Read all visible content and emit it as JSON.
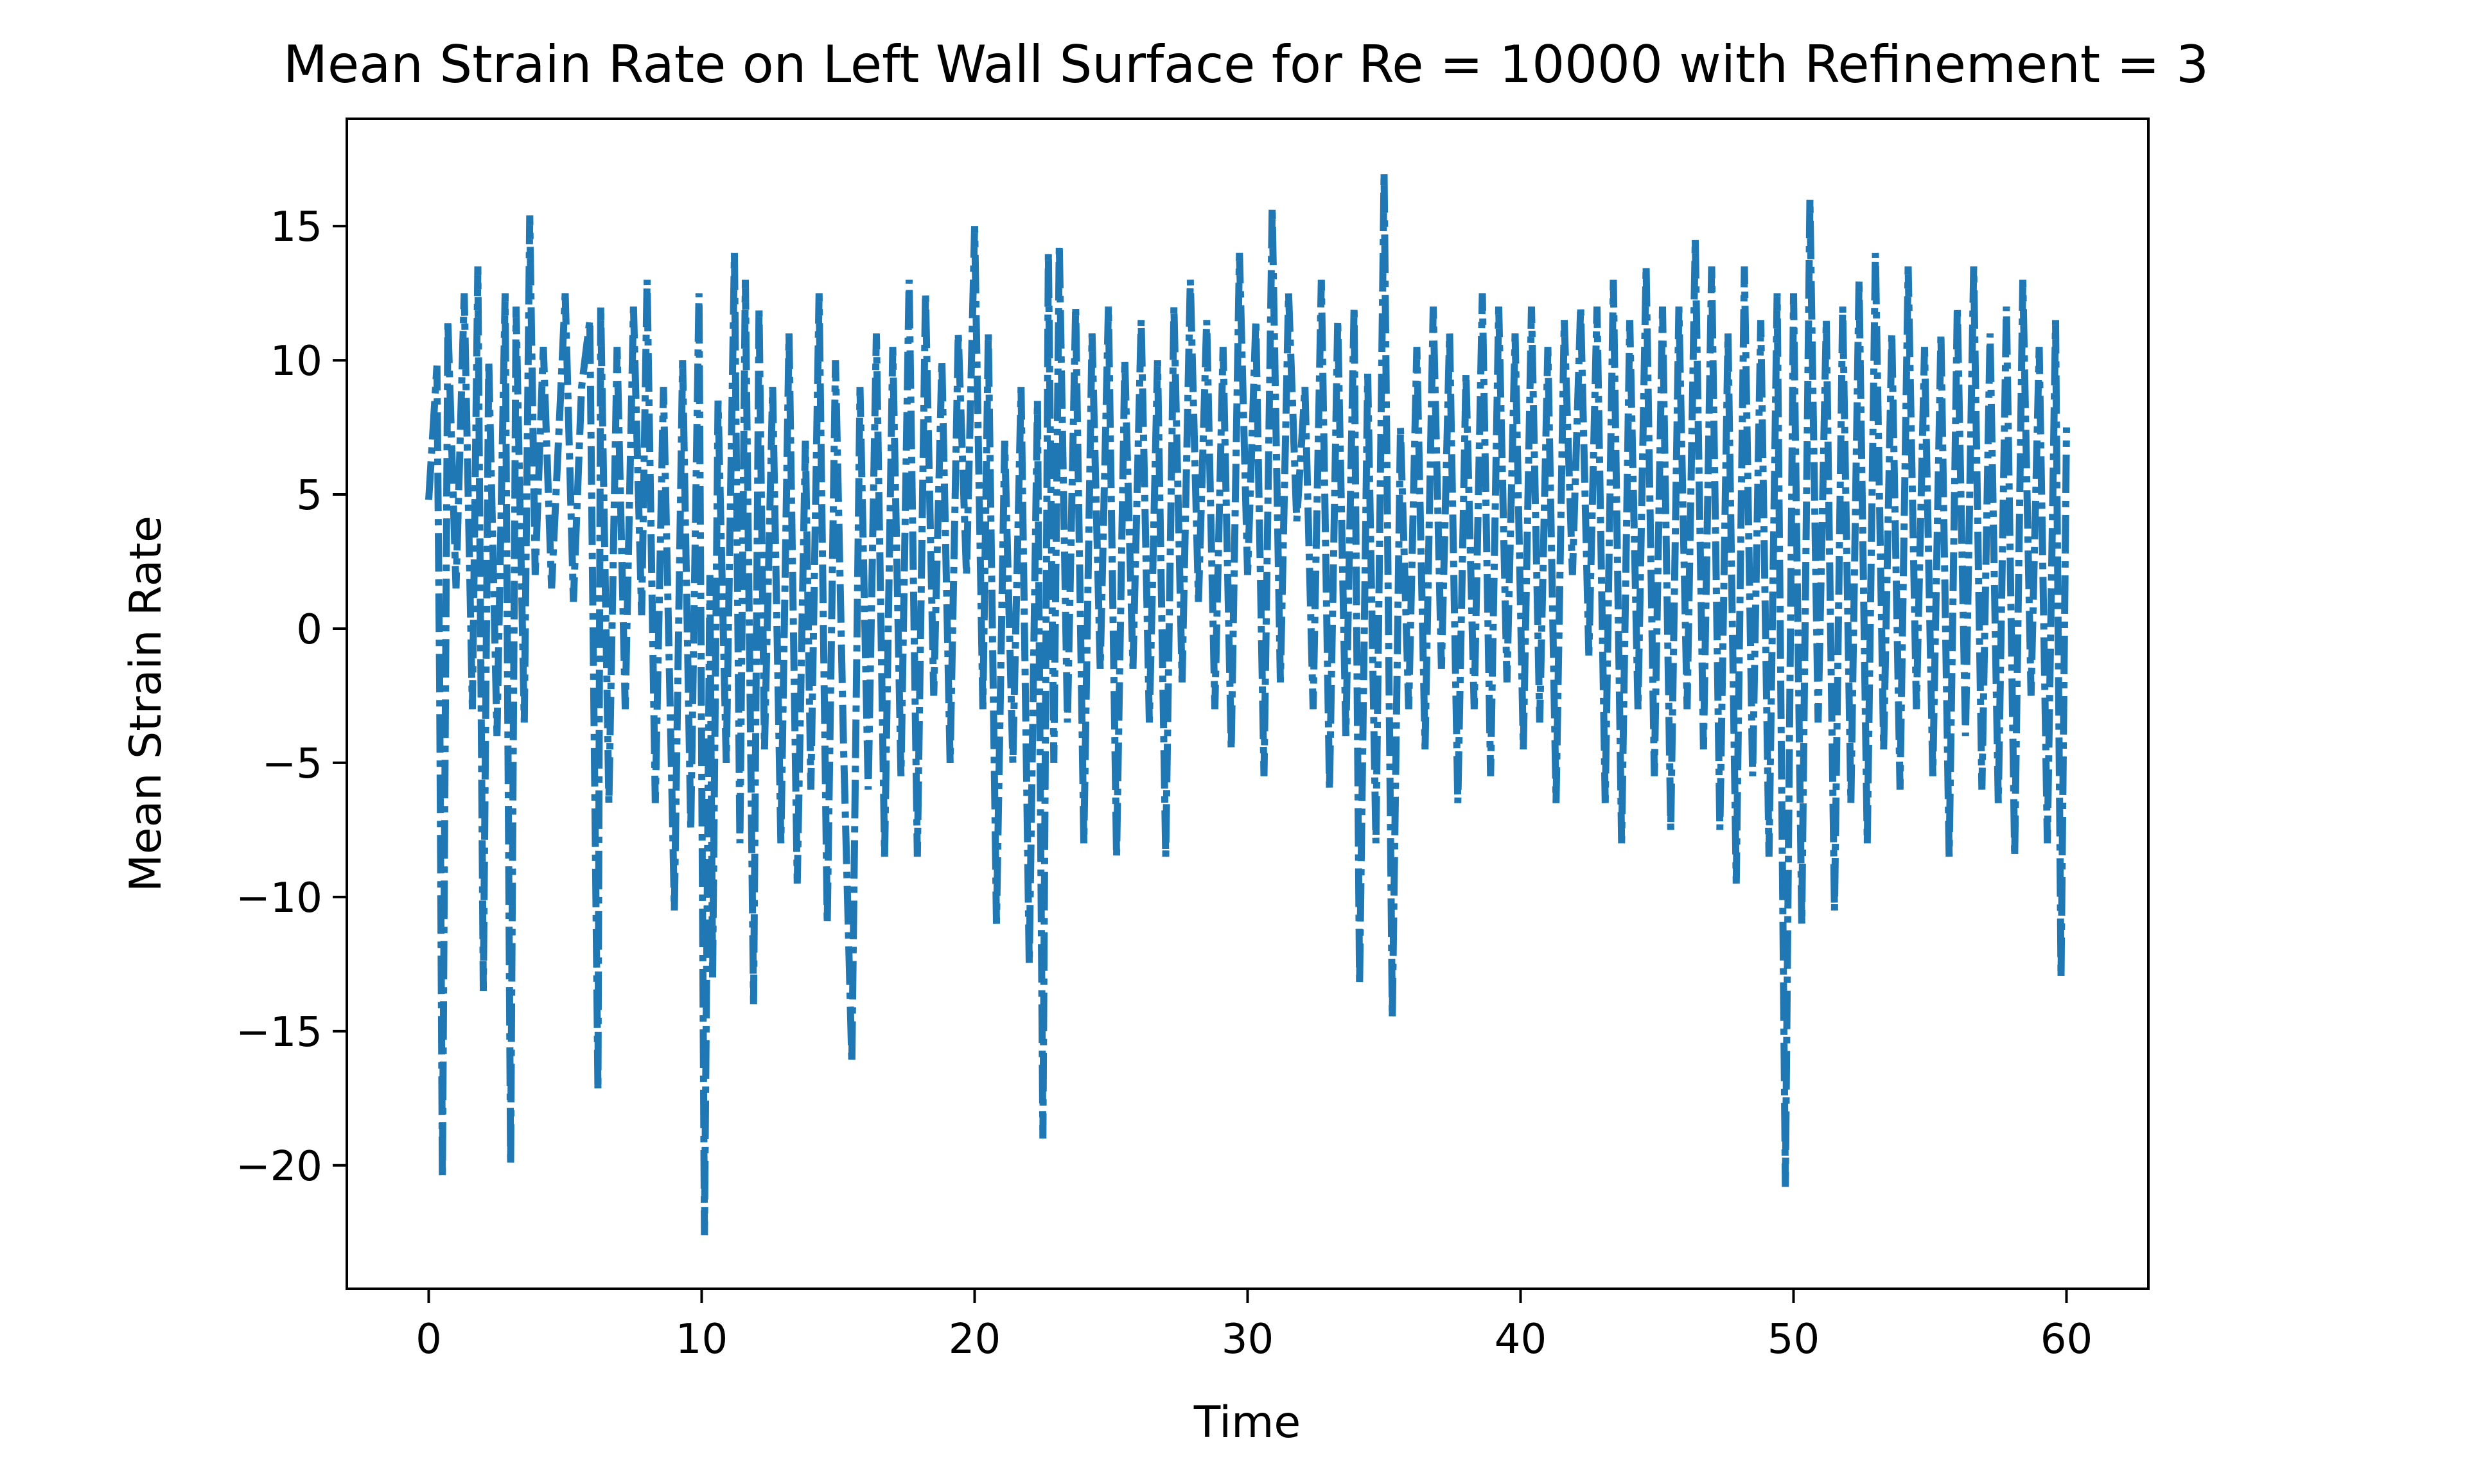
{
  "chart_data": {
    "type": "line",
    "title": "Mean Strain Rate on Left Wall Surface for Re = 10000 with Refinement = 3",
    "xlabel": "Time",
    "ylabel": "Mean Strain Rate",
    "xlim": [
      -3,
      63
    ],
    "ylim": [
      -24.6,
      19.0
    ],
    "xticks": [
      0,
      10,
      20,
      30,
      40,
      50,
      60
    ],
    "yticks": [
      15,
      10,
      5,
      0,
      -5,
      -10,
      -15,
      -20
    ],
    "xtick_labels": [
      "0",
      "10",
      "20",
      "30",
      "40",
      "50",
      "60"
    ],
    "ytick_labels": [
      "15",
      "10",
      "5",
      "0",
      "−5",
      "−10",
      "−15",
      "−20"
    ],
    "grid": false,
    "line_style": "dashdot",
    "color": "#1f77b4",
    "series": [
      {
        "x": [
          0.0,
          0.3,
          0.4,
          0.5,
          0.7,
          1.0,
          1.3,
          1.6,
          1.8,
          2.0,
          2.2,
          2.5,
          2.8,
          3.0,
          3.2,
          3.5,
          3.7,
          3.9,
          4.2,
          4.5,
          4.8,
          5.0,
          5.3,
          5.6,
          5.9,
          6.2,
          6.3,
          6.6,
          6.9,
          7.2,
          7.5,
          7.8,
          8.0,
          8.3,
          8.6,
          9.0,
          9.3,
          9.6,
          9.9,
          10.1,
          10.3,
          10.4,
          10.6,
          10.9,
          11.2,
          11.4,
          11.6,
          11.9,
          12.1,
          12.3,
          12.6,
          12.9,
          13.2,
          13.5,
          13.8,
          14.0,
          14.3,
          14.6,
          14.9,
          15.2,
          15.5,
          15.8,
          16.1,
          16.4,
          16.7,
          17.0,
          17.3,
          17.6,
          17.9,
          18.2,
          18.5,
          18.8,
          19.1,
          19.4,
          19.7,
          20.0,
          20.3,
          20.5,
          20.8,
          21.1,
          21.4,
          21.7,
          22.0,
          22.3,
          22.5,
          22.7,
          22.9,
          23.1,
          23.4,
          23.7,
          24.0,
          24.3,
          24.6,
          24.9,
          25.2,
          25.5,
          25.8,
          26.1,
          26.4,
          26.7,
          27.0,
          27.3,
          27.6,
          27.9,
          28.2,
          28.5,
          28.8,
          29.1,
          29.4,
          29.7,
          30.0,
          30.3,
          30.6,
          30.9,
          31.2,
          31.5,
          31.8,
          32.1,
          32.4,
          32.7,
          33.0,
          33.3,
          33.6,
          33.9,
          34.1,
          34.4,
          34.7,
          35.0,
          35.3,
          35.6,
          35.9,
          36.2,
          36.5,
          36.8,
          37.1,
          37.4,
          37.7,
          38.0,
          38.3,
          38.6,
          38.9,
          39.2,
          39.5,
          39.8,
          40.1,
          40.4,
          40.7,
          41.0,
          41.3,
          41.6,
          41.9,
          42.2,
          42.5,
          42.8,
          43.1,
          43.4,
          43.7,
          44.0,
          44.3,
          44.6,
          44.9,
          45.2,
          45.5,
          45.8,
          46.1,
          46.4,
          46.7,
          47.0,
          47.3,
          47.6,
          47.9,
          48.2,
          48.5,
          48.8,
          49.1,
          49.4,
          49.7,
          50.0,
          50.3,
          50.6,
          50.9,
          51.2,
          51.5,
          51.8,
          52.1,
          52.4,
          52.7,
          53.0,
          53.3,
          53.6,
          53.9,
          54.2,
          54.5,
          54.8,
          55.1,
          55.4,
          55.7,
          56.0,
          56.3,
          56.6,
          56.9,
          57.2,
          57.5,
          57.8,
          58.1,
          58.4,
          58.7,
          59.0,
          59.3,
          59.6,
          59.8,
          60.0
        ],
        "y": [
          4.8,
          9.8,
          -2.0,
          -20.5,
          11.5,
          1.5,
          12.5,
          -3.0,
          13.5,
          -13.5,
          10.0,
          -4.0,
          12.5,
          -20.0,
          12.0,
          -3.5,
          15.4,
          2.0,
          10.5,
          1.5,
          8.0,
          12.5,
          1.0,
          9.0,
          11.5,
          -17.2,
          12.0,
          -6.5,
          10.5,
          -3.0,
          12.0,
          0.5,
          13.0,
          -6.5,
          9.0,
          -10.5,
          10.0,
          -7.5,
          12.5,
          -22.6,
          2.0,
          -13.0,
          8.5,
          -5.0,
          14.0,
          -8.0,
          13.0,
          -14.0,
          12.0,
          -4.5,
          9.0,
          -8.0,
          11.0,
          -9.5,
          7.0,
          -6.0,
          12.5,
          -11.0,
          10.0,
          -4.5,
          -16.2,
          9.0,
          -6.0,
          11.0,
          -8.5,
          10.5,
          -5.5,
          13.0,
          -8.5,
          12.5,
          -2.5,
          10.0,
          -5.0,
          11.0,
          2.0,
          15.0,
          -3.0,
          11.0,
          -11.0,
          7.0,
          -5.0,
          9.0,
          -12.5,
          8.5,
          -19.0,
          14.0,
          -5.0,
          14.3,
          -3.5,
          12.0,
          -8.0,
          11.0,
          -1.5,
          12.0,
          -8.5,
          10.0,
          -1.5,
          11.5,
          -3.5,
          10.0,
          -8.5,
          12.0,
          -2.0,
          13.0,
          1.0,
          11.5,
          -3.0,
          10.5,
          -4.5,
          14.0,
          2.0,
          11.5,
          -5.5,
          15.7,
          -2.0,
          12.5,
          4.0,
          9.0,
          -3.0,
          13.0,
          -6.0,
          11.5,
          -4.0,
          12.0,
          -13.3,
          9.5,
          -8.0,
          17.0,
          -14.5,
          7.5,
          -3.0,
          10.5,
          -4.5,
          12.0,
          -1.5,
          11.0,
          -6.5,
          9.5,
          -3.0,
          12.5,
          -5.5,
          12.0,
          -2.0,
          11.0,
          -4.5,
          12.0,
          -3.5,
          10.5,
          -6.5,
          11.5,
          2.0,
          12.0,
          -1.0,
          12.0,
          -6.5,
          13.0,
          -8.0,
          11.5,
          -3.0,
          13.5,
          -5.5,
          12.0,
          -7.5,
          12.0,
          -3.0,
          14.5,
          -4.5,
          13.5,
          -7.5,
          11.0,
          -9.5,
          13.5,
          -5.5,
          11.5,
          -8.5,
          12.5,
          -20.8,
          12.5,
          -11.0,
          16.0,
          -3.5,
          11.5,
          -10.5,
          12.0,
          -6.5,
          13.0,
          -8.0,
          14.0,
          -4.5,
          11.0,
          -6.0,
          13.5,
          -3.0,
          10.5,
          -5.5,
          11.0,
          -8.5,
          12.0,
          -4.0,
          13.5,
          -6.0,
          11.0,
          -6.5,
          12.0,
          -8.5,
          13.0,
          -2.5,
          10.5,
          -8.0,
          11.5,
          -13.0,
          7.5
        ]
      }
    ]
  }
}
